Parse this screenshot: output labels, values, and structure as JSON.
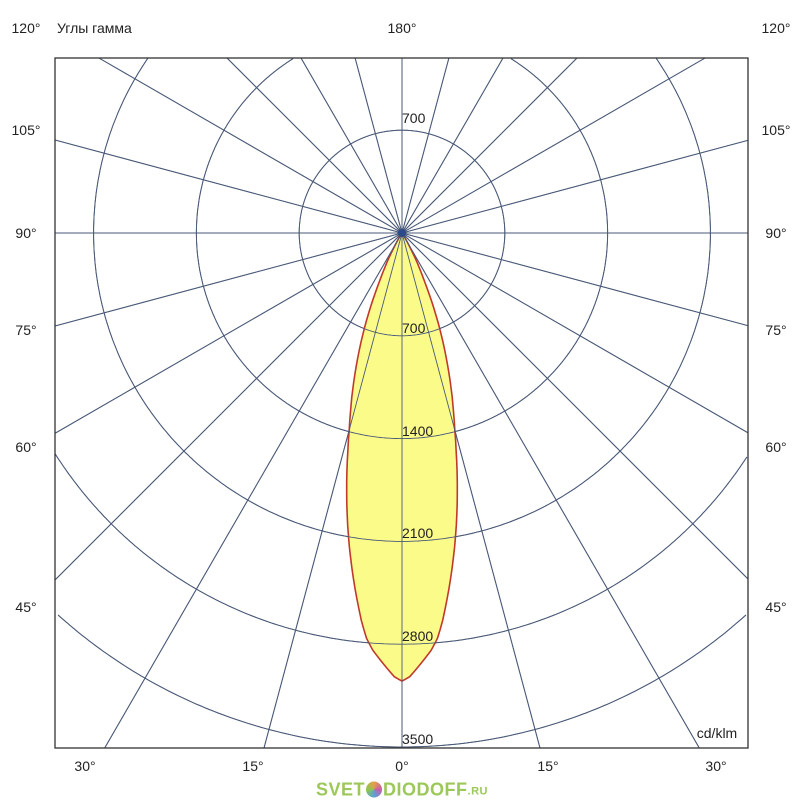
{
  "chart_data": {
    "type": "polar",
    "title": "Углы гамма",
    "unit": "cd/klm",
    "radial_ticks": [
      700,
      1400,
      2100,
      2800,
      3500
    ],
    "rlim": [
      0,
      3500
    ],
    "angle_labels_left": [
      "120°",
      "105°",
      "90°",
      "75°",
      "60°",
      "45°"
    ],
    "angle_label_top": "180°",
    "angle_labels_bottom": [
      "30°",
      "15°",
      "0°",
      "15°",
      "30°"
    ],
    "angle_labels_right": [
      "120°",
      "105°",
      "90°",
      "75°",
      "60°",
      "45°"
    ],
    "spoke_step_deg": 15,
    "grid": true,
    "series": [
      {
        "gamma_deg": [
          0,
          5,
          10,
          15,
          20,
          25,
          30,
          35
        ],
        "intensity": [
          3080,
          2790,
          2100,
          1380,
          850,
          350,
          60,
          0
        ],
        "symmetric": true,
        "fill": "#fbfb8a",
        "stroke": "#c0392b"
      }
    ]
  },
  "colors": {
    "grid": "#4a5a78",
    "frame": "#333333"
  },
  "logo": {
    "text_a": "SVET",
    "text_b": "DIODOFF",
    "text_c": ".RU"
  }
}
